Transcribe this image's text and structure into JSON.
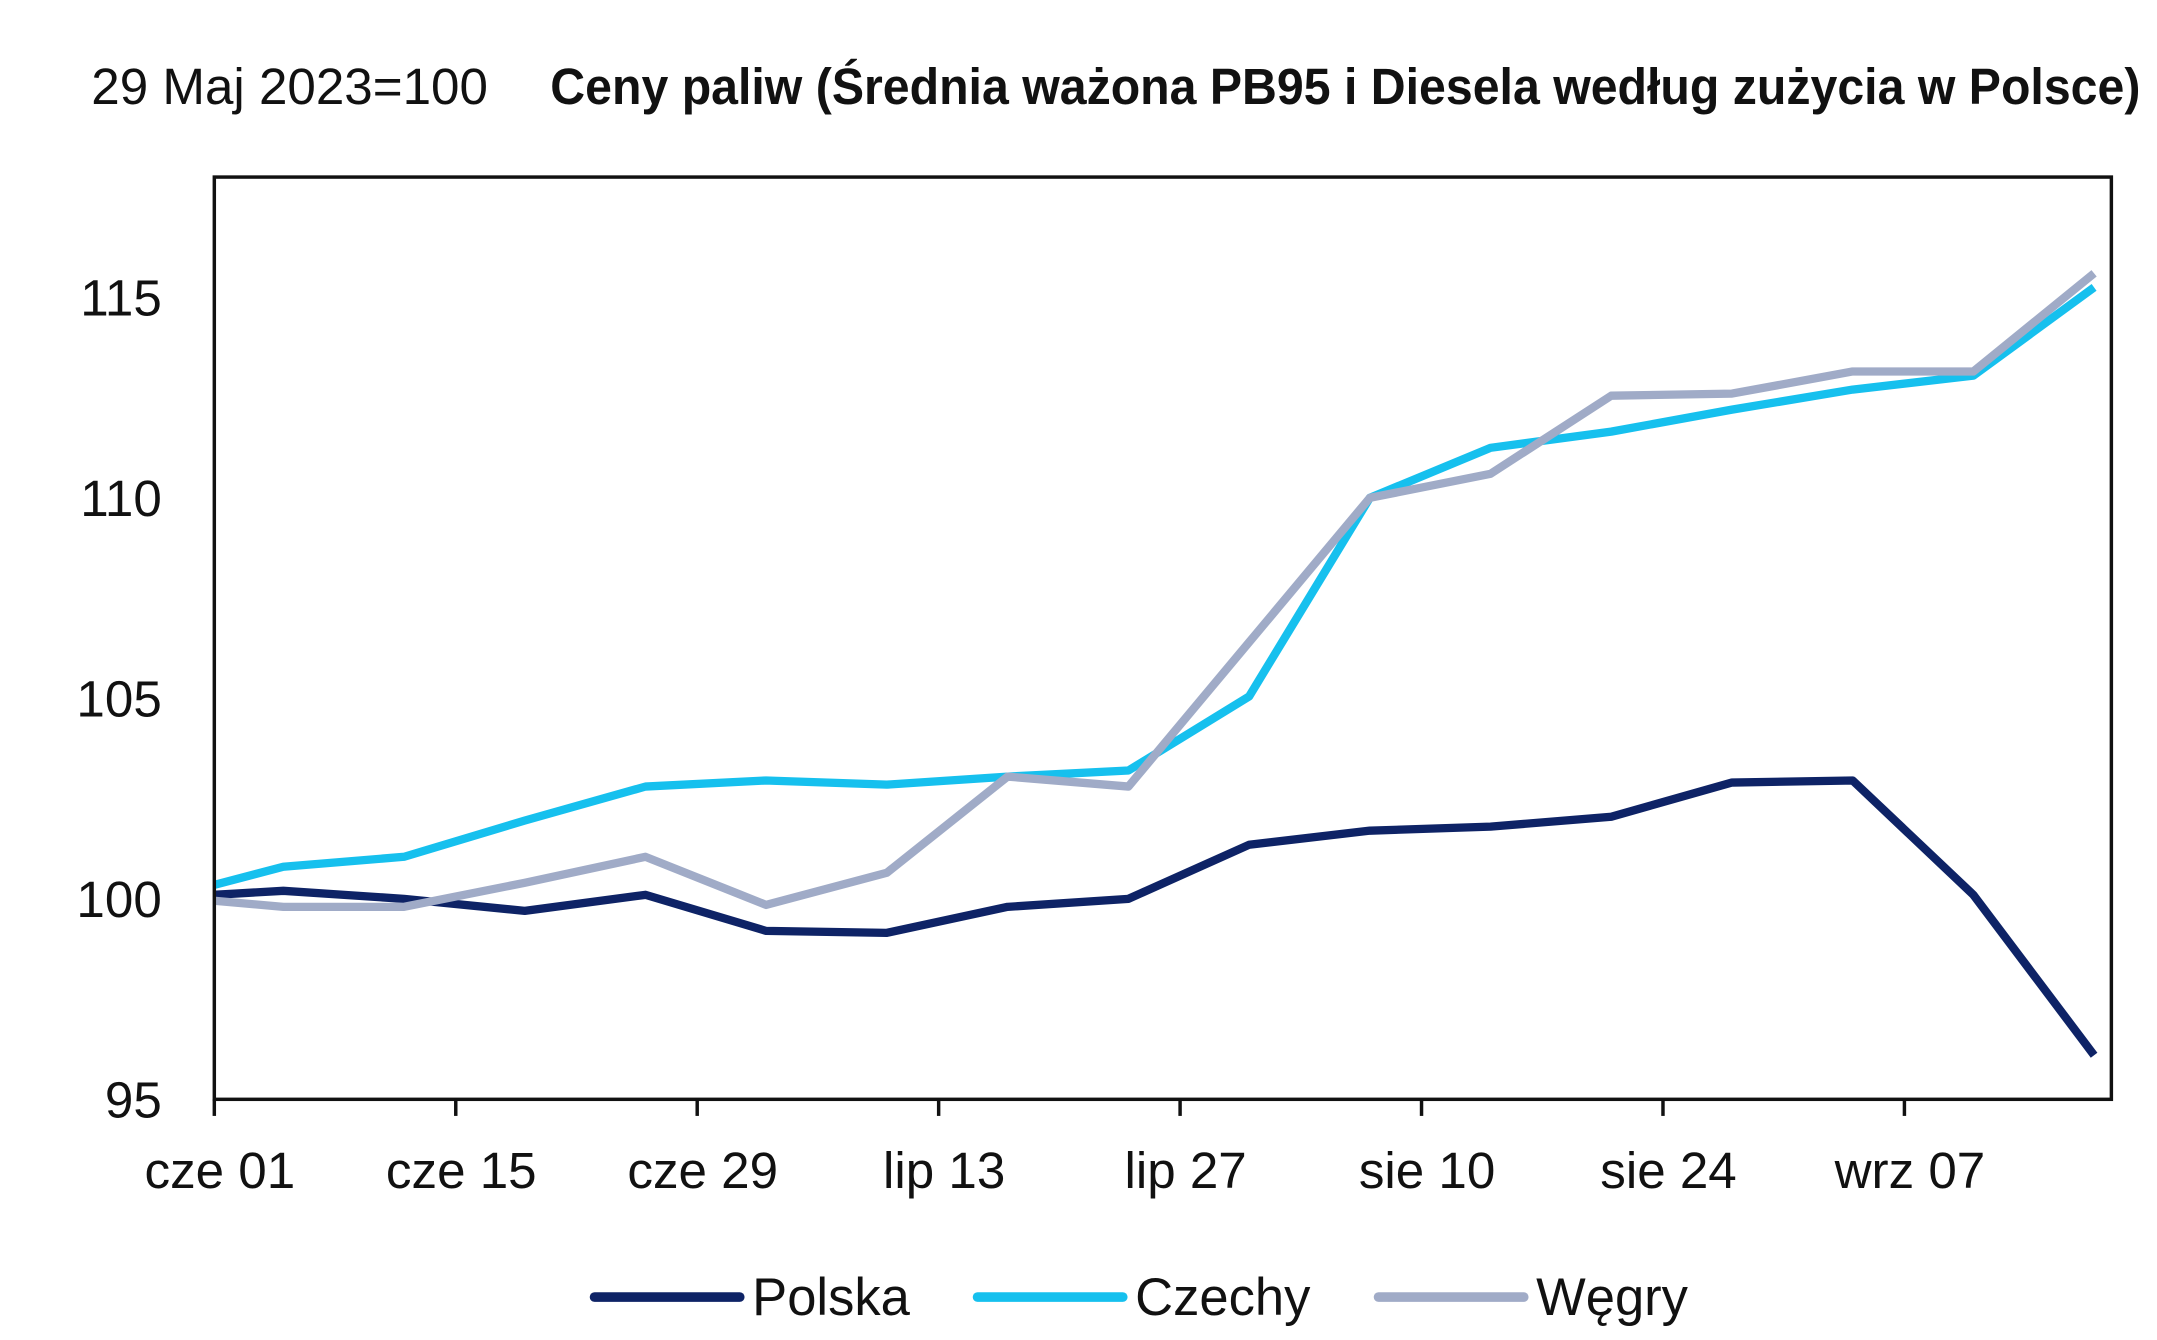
{
  "chart_data": {
    "type": "line",
    "base_label": "29 Maj 2023=100",
    "title": "Ceny paliw (Średnia ważona PB95 i Diesela według zużycia w Polsce)",
    "xlabel": "",
    "ylabel": "",
    "ylim": [
      95,
      118
    ],
    "yticks": [
      95,
      100,
      105,
      110,
      115
    ],
    "xlim": [
      "2023-06-01",
      "2023-09-19"
    ],
    "xticks": [
      {
        "date": "2023-06-01",
        "label": "cze 01"
      },
      {
        "date": "2023-06-15",
        "label": "cze 15"
      },
      {
        "date": "2023-06-29",
        "label": "cze 29"
      },
      {
        "date": "2023-07-13",
        "label": "lip 13"
      },
      {
        "date": "2023-07-27",
        "label": "lip 27"
      },
      {
        "date": "2023-08-10",
        "label": "sie 10"
      },
      {
        "date": "2023-08-24",
        "label": "sie 24"
      },
      {
        "date": "2023-09-07",
        "label": "wrz 07"
      }
    ],
    "grid": false,
    "legend_position": "bottom",
    "x": [
      "2023-06-01",
      "2023-06-05",
      "2023-06-12",
      "2023-06-19",
      "2023-06-26",
      "2023-07-03",
      "2023-07-10",
      "2023-07-17",
      "2023-07-24",
      "2023-07-31",
      "2023-08-07",
      "2023-08-14",
      "2023-08-21",
      "2023-08-28",
      "2023-09-04",
      "2023-09-11",
      "2023-09-18"
    ],
    "series": [
      {
        "name": "Polska",
        "color": "#0e2366",
        "values": [
          100.1,
          100.2,
          100.0,
          99.7,
          100.1,
          99.2,
          99.15,
          99.8,
          100.0,
          101.35,
          101.7,
          101.8,
          102.05,
          102.9,
          102.95,
          100.1,
          96.1
        ]
      },
      {
        "name": "Czechy",
        "color": "#16c0ee",
        "values": [
          100.35,
          100.8,
          101.05,
          101.95,
          102.8,
          102.95,
          102.85,
          103.05,
          103.2,
          105.05,
          110.0,
          111.25,
          111.65,
          112.2,
          112.7,
          113.05,
          115.25
        ]
      },
      {
        "name": "Węgry",
        "color": "#a0abc7",
        "values": [
          99.95,
          99.8,
          99.8,
          100.4,
          101.05,
          99.85,
          100.65,
          103.05,
          102.8,
          106.4,
          110.0,
          110.6,
          112.55,
          112.6,
          113.15,
          113.15,
          115.6
        ]
      }
    ]
  }
}
